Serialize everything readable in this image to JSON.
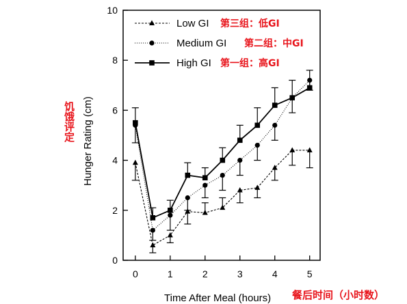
{
  "chart_data": {
    "type": "line",
    "x": [
      0,
      0.5,
      1,
      1.5,
      2,
      2.5,
      3,
      3.5,
      4,
      4.5,
      5
    ],
    "xlabel": "Time After Meal (hours)",
    "xlabel_cn": "餐后时间（小时数）",
    "ylabel": "Hunger Rating (cm)",
    "ylabel_cn": "饥饿评定",
    "xlim": [
      -0.35,
      5.3
    ],
    "ylim": [
      0,
      10
    ],
    "xticks": [
      0,
      1,
      2,
      3,
      4,
      5
    ],
    "yticks": [
      0,
      2,
      4,
      6,
      8,
      10
    ],
    "legend_position": "top-left",
    "grid": false,
    "series": [
      {
        "name": "Low  GI",
        "name_cn": "第三组：低GI",
        "marker": "triangle",
        "line": "dashed",
        "values": [
          3.9,
          0.6,
          1.0,
          1.95,
          1.9,
          2.1,
          2.8,
          2.9,
          3.7,
          4.4,
          4.4
        ],
        "errors": [
          0.7,
          0.3,
          0.3,
          0.5,
          0.4,
          0.4,
          0.5,
          0.4,
          0.5,
          0.6,
          0.7
        ],
        "error_dir": [
          -1,
          -1,
          -1,
          -1,
          1,
          1,
          -1,
          -1,
          -1,
          -1,
          -1
        ]
      },
      {
        "name": "Medium  GI",
        "name_cn": "第二组：中GI",
        "marker": "circle",
        "line": "dotted",
        "values": [
          5.4,
          1.2,
          1.8,
          2.5,
          3.0,
          3.4,
          4.0,
          4.6,
          5.4,
          6.5,
          7.2
        ],
        "errors": [
          0.7,
          0.4,
          0.6,
          0.5,
          0.5,
          0.6,
          0.6,
          0.6,
          0.6,
          0.6,
          0.4
        ],
        "error_dir": [
          -1,
          -1,
          -1,
          -1,
          -1,
          -1,
          -1,
          -1,
          -1,
          -1,
          -1
        ]
      },
      {
        "name": "High  GI",
        "name_cn": "第一组：高GI",
        "marker": "square",
        "line": "solid",
        "values": [
          5.5,
          1.7,
          2.0,
          3.4,
          3.3,
          4.0,
          4.8,
          5.4,
          6.2,
          6.5,
          6.9
        ],
        "errors": [
          0.6,
          0.4,
          0.4,
          0.5,
          0.4,
          0.5,
          0.6,
          0.7,
          0.7,
          0.7,
          0.7
        ],
        "error_dir": [
          1,
          1,
          1,
          1,
          1,
          1,
          1,
          1,
          1,
          1,
          1
        ]
      }
    ]
  }
}
